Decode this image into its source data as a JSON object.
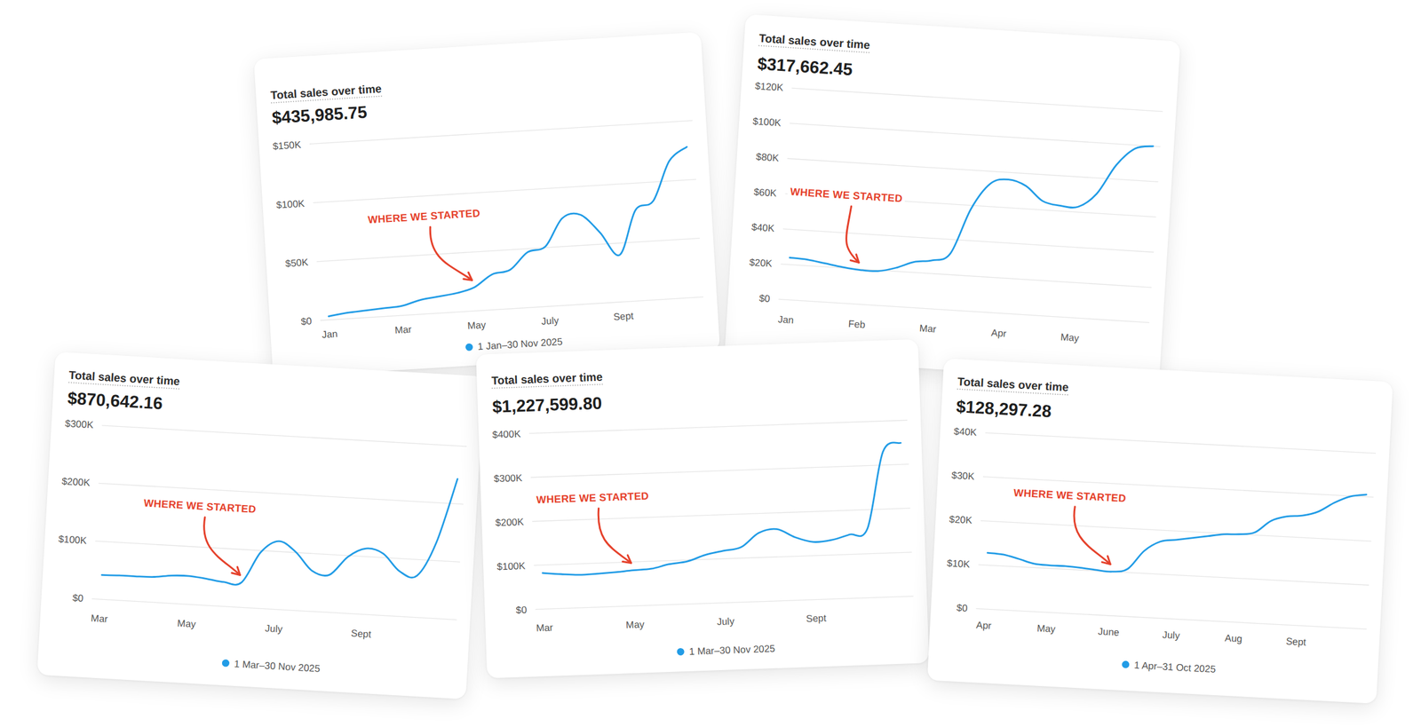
{
  "chart_data": [
    {
      "type": "line",
      "title": "Total sales over time",
      "subtitle": "$435,985.75",
      "categories": [
        "Jan",
        null,
        null,
        null,
        "Mar",
        null,
        null,
        null,
        "May",
        null,
        null,
        null,
        "July",
        null,
        null,
        null,
        "Sept",
        null,
        null,
        null,
        null
      ],
      "series": [
        {
          "name": "1 Jan–30 Nov 2025",
          "color": "#229ce6",
          "values": [
            3000,
            5000,
            6000,
            7000,
            8000,
            12000,
            14000,
            16000,
            20000,
            30000,
            33000,
            47000,
            51000,
            74000,
            76000,
            60000,
            40000,
            77000,
            84000,
            117000,
            128000
          ]
        }
      ],
      "ylim": [
        0,
        150000
      ],
      "yticks": [
        {
          "value": 0,
          "label": "$0"
        },
        {
          "value": 50000,
          "label": "$50K"
        },
        {
          "value": 100000,
          "label": "$100K"
        },
        {
          "value": 150000,
          "label": "$150K"
        }
      ],
      "grid": true,
      "legend": "bottom",
      "annotations": [
        {
          "text": "WHERE WE STARTED",
          "x": 8
        }
      ]
    },
    {
      "type": "line",
      "title": "Total sales over time",
      "subtitle": "$317,662.45",
      "categories": [
        "Jan",
        null,
        null,
        null,
        "Feb",
        null,
        null,
        null,
        "Mar",
        null,
        null,
        null,
        "Apr",
        null,
        null,
        null,
        "May",
        null,
        null,
        null,
        null
      ],
      "series": [
        {
          "color": "#229ce6",
          "values": [
            24000,
            23500,
            22000,
            20500,
            19500,
            19500,
            22000,
            26000,
            27500,
            32000,
            58000,
            73000,
            76000,
            73000,
            65000,
            63000,
            63000,
            71000,
            88000,
            98000,
            100000
          ]
        }
      ],
      "ylim": [
        0,
        120000
      ],
      "yticks": [
        {
          "value": 0,
          "label": "$0"
        },
        {
          "value": 20000,
          "label": "$20K"
        },
        {
          "value": 40000,
          "label": "$40K"
        },
        {
          "value": 60000,
          "label": "$60K"
        },
        {
          "value": 80000,
          "label": "$80K"
        },
        {
          "value": 100000,
          "label": "$100K"
        },
        {
          "value": 120000,
          "label": "$120K"
        }
      ],
      "grid": true,
      "annotations": [
        {
          "text": "WHERE WE STARTED",
          "x": 4
        }
      ]
    },
    {
      "type": "line",
      "title": "Total sales over time",
      "subtitle": "$870,642.16",
      "categories": [
        "Mar",
        null,
        null,
        null,
        null,
        "May",
        null,
        null,
        null,
        null,
        "July",
        null,
        null,
        null,
        null,
        "Sept",
        null,
        null,
        null,
        null,
        null
      ],
      "series": [
        {
          "name": "1 Mar–30 Nov 2025",
          "color": "#229ce6",
          "values": [
            42000,
            43000,
            43000,
            44000,
            48000,
            49000,
            46000,
            42000,
            43000,
            97000,
            118000,
            101000,
            70000,
            65000,
            98000,
            114000,
            107000,
            78000,
            72000,
            131000,
            243000
          ]
        }
      ],
      "ylim": [
        0,
        300000
      ],
      "yticks": [
        {
          "value": 0,
          "label": "$0"
        },
        {
          "value": 100000,
          "label": "$100K"
        },
        {
          "value": 200000,
          "label": "$200K"
        },
        {
          "value": 300000,
          "label": "$300K"
        }
      ],
      "grid": true,
      "legend": "bottom",
      "annotations": [
        {
          "text": "WHERE WE STARTED",
          "x": 8
        }
      ]
    },
    {
      "type": "line",
      "title": "Total sales over time",
      "subtitle": "$1,227,599.80",
      "categories": [
        "Mar",
        null,
        null,
        null,
        null,
        "May",
        null,
        null,
        null,
        null,
        "July",
        null,
        null,
        null,
        null,
        "Sept",
        null,
        null,
        null,
        null,
        null
      ],
      "series": [
        {
          "name": "1 Mar–30 Nov 2025",
          "color": "#229ce6",
          "values": [
            82000,
            78000,
            75000,
            76000,
            78000,
            81000,
            83000,
            92000,
            97000,
            110000,
            118000,
            125000,
            156000,
            163000,
            143000,
            131000,
            134000,
            145000,
            157000,
            330000,
            349000
          ]
        }
      ],
      "ylim": [
        0,
        400000
      ],
      "yticks": [
        {
          "value": 0,
          "label": "$0"
        },
        {
          "value": 100000,
          "label": "$100K"
        },
        {
          "value": 200000,
          "label": "$200K"
        },
        {
          "value": 300000,
          "label": "$300K"
        },
        {
          "value": 400000,
          "label": "$400K"
        }
      ],
      "grid": true,
      "legend": "bottom",
      "annotations": [
        {
          "text": "WHERE WE STARTED",
          "x": 5
        }
      ]
    },
    {
      "type": "line",
      "title": "Total sales over time",
      "subtitle": "$128,297.28",
      "categories": [
        "Apr",
        null,
        null,
        null,
        "May",
        null,
        null,
        null,
        "June",
        null,
        null,
        null,
        "July",
        null,
        null,
        null,
        "Aug",
        null,
        null,
        null,
        "Sept",
        null,
        null,
        null,
        null
      ],
      "series": [
        {
          "name": "1 Apr–31 Oct 2025",
          "color": "#229ce6",
          "values": [
            12800,
            12600,
            11800,
            10900,
            10700,
            10700,
            10500,
            10200,
            10000,
            10800,
            15100,
            17400,
            18000,
            18600,
            19200,
            19800,
            20000,
            20600,
            23400,
            24600,
            25000,
            26100,
            28300,
            29900,
            30500
          ]
        }
      ],
      "ylim": [
        0,
        40000
      ],
      "yticks": [
        {
          "value": 0,
          "label": "$0"
        },
        {
          "value": 10000,
          "label": "$10K"
        },
        {
          "value": 20000,
          "label": "$20K"
        },
        {
          "value": 30000,
          "label": "$30K"
        },
        {
          "value": 40000,
          "label": "$40K"
        }
      ],
      "grid": true,
      "legend": "bottom",
      "annotations": [
        {
          "text": "WHERE WE STARTED",
          "x": 8
        }
      ]
    }
  ]
}
